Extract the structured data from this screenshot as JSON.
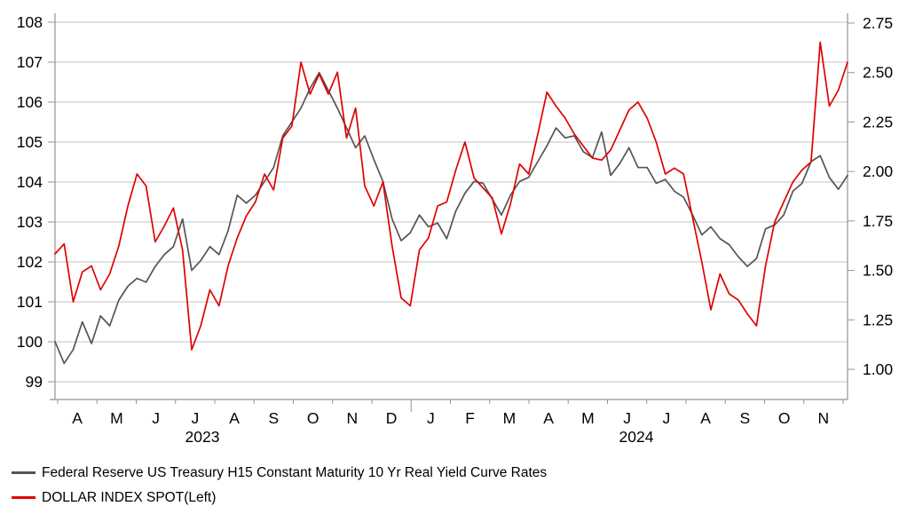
{
  "chart_data": {
    "type": "line",
    "title": "",
    "grid": "horizontal",
    "legend_position": "bottom-left",
    "x_axis": {
      "month_tick_labels": [
        "A",
        "M",
        "J",
        "J",
        "A",
        "S",
        "O",
        "N",
        "D",
        "J",
        "F",
        "M",
        "A",
        "M",
        "J",
        "J",
        "A",
        "S",
        "O",
        "N"
      ],
      "year_labels": [
        "2023",
        "2024"
      ],
      "start": "Apr 2023",
      "end": "Nov 2024"
    },
    "left_axis": {
      "ticks": [
        "108",
        "107",
        "106",
        "105",
        "104",
        "103",
        "102",
        "101",
        "100",
        "99"
      ],
      "min": 99,
      "max": 108
    },
    "right_axis": {
      "ticks": [
        "2.75",
        "2.50",
        "2.25",
        "2.00",
        "1.75",
        "1.50",
        "1.25",
        "1.00"
      ],
      "min": 1.0,
      "max": 2.75
    },
    "series": [
      {
        "name": "Federal Reserve US Treasury H15 Constant Maturity 10 Yr Real Yield Curve Rates",
        "axis": "right",
        "color": "#555555",
        "values": [
          1.14,
          1.03,
          1.1,
          1.24,
          1.13,
          1.27,
          1.22,
          1.35,
          1.42,
          1.46,
          1.44,
          1.52,
          1.58,
          1.62,
          1.76,
          1.5,
          1.55,
          1.62,
          1.58,
          1.7,
          1.88,
          1.84,
          1.88,
          1.95,
          2.02,
          2.18,
          2.25,
          2.32,
          2.42,
          2.5,
          2.41,
          2.32,
          2.22,
          2.12,
          2.18,
          2.06,
          1.95,
          1.76,
          1.65,
          1.69,
          1.78,
          1.72,
          1.74,
          1.66,
          1.8,
          1.89,
          1.95,
          1.94,
          1.86,
          1.78,
          1.88,
          1.95,
          1.97,
          2.05,
          2.13,
          2.22,
          2.17,
          2.18,
          2.1,
          2.07,
          2.2,
          1.98,
          2.04,
          2.12,
          2.02,
          2.02,
          1.94,
          1.96,
          1.9,
          1.87,
          1.78,
          1.68,
          1.72,
          1.66,
          1.63,
          1.57,
          1.52,
          1.56,
          1.71,
          1.73,
          1.78,
          1.9,
          1.94,
          2.05,
          2.08,
          1.97,
          1.91,
          1.98
        ]
      },
      {
        "name": "DOLLAR INDEX SPOT(Left)",
        "axis": "left",
        "color": "#e00000",
        "values": [
          102.2,
          102.45,
          101.0,
          101.75,
          101.9,
          101.3,
          101.7,
          102.4,
          103.4,
          104.2,
          103.9,
          102.5,
          102.9,
          103.35,
          102.3,
          99.8,
          100.4,
          101.3,
          100.9,
          101.9,
          102.6,
          103.15,
          103.5,
          104.2,
          103.8,
          105.1,
          105.4,
          107.0,
          106.2,
          106.7,
          106.2,
          106.75,
          105.1,
          105.85,
          103.9,
          103.4,
          104.0,
          102.4,
          101.1,
          100.9,
          102.3,
          102.6,
          103.4,
          103.5,
          104.3,
          105.0,
          104.1,
          103.85,
          103.6,
          102.7,
          103.45,
          104.45,
          104.2,
          105.2,
          106.25,
          105.9,
          105.6,
          105.2,
          104.9,
          104.6,
          104.55,
          104.8,
          105.3,
          105.8,
          106.0,
          105.6,
          105.0,
          104.2,
          104.35,
          104.2,
          103.1,
          102.0,
          100.8,
          101.7,
          101.2,
          101.05,
          100.7,
          100.4,
          101.9,
          103.0,
          103.5,
          104.0,
          104.3,
          104.5,
          107.5,
          105.9,
          106.3,
          107.0
        ]
      }
    ]
  },
  "legend": {
    "items": [
      {
        "label": "Federal Reserve US Treasury H15 Constant Maturity 10 Yr Real Yield Curve Rates",
        "color": "#555555"
      },
      {
        "label": "DOLLAR INDEX SPOT(Left)",
        "color": "#e00000"
      }
    ]
  }
}
